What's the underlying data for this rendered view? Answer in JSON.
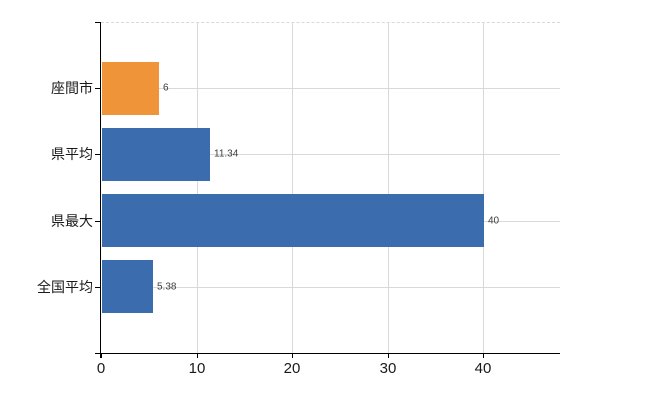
{
  "chart_data": {
    "type": "bar",
    "orientation": "horizontal",
    "title": "",
    "xlabel": "",
    "ylabel": "",
    "categories": [
      "座間市",
      "県平均",
      "県最大",
      "全国平均"
    ],
    "values": [
      6,
      11.34,
      40,
      5.38
    ],
    "value_labels": [
      "6",
      "11.34",
      "40",
      "5.38"
    ],
    "bar_colors": [
      "#EF9439",
      "#3B6CAE",
      "#3B6CAE",
      "#3B6CAE"
    ],
    "highlight_color": "#EF9439",
    "series_color": "#3B6CAE",
    "x_ticks": [
      0,
      10,
      20,
      30,
      40
    ],
    "x_tick_labels": [
      "0",
      "10",
      "20",
      "30",
      "40"
    ],
    "xlim": [
      0,
      48
    ],
    "grid": true,
    "legend": false,
    "axis_color": "#000000",
    "gridline_color": "#D9D9D9",
    "text_color": "#1A1A1A",
    "value_label_color": "#3D3D3D",
    "background_color": "#FFFFFF"
  }
}
